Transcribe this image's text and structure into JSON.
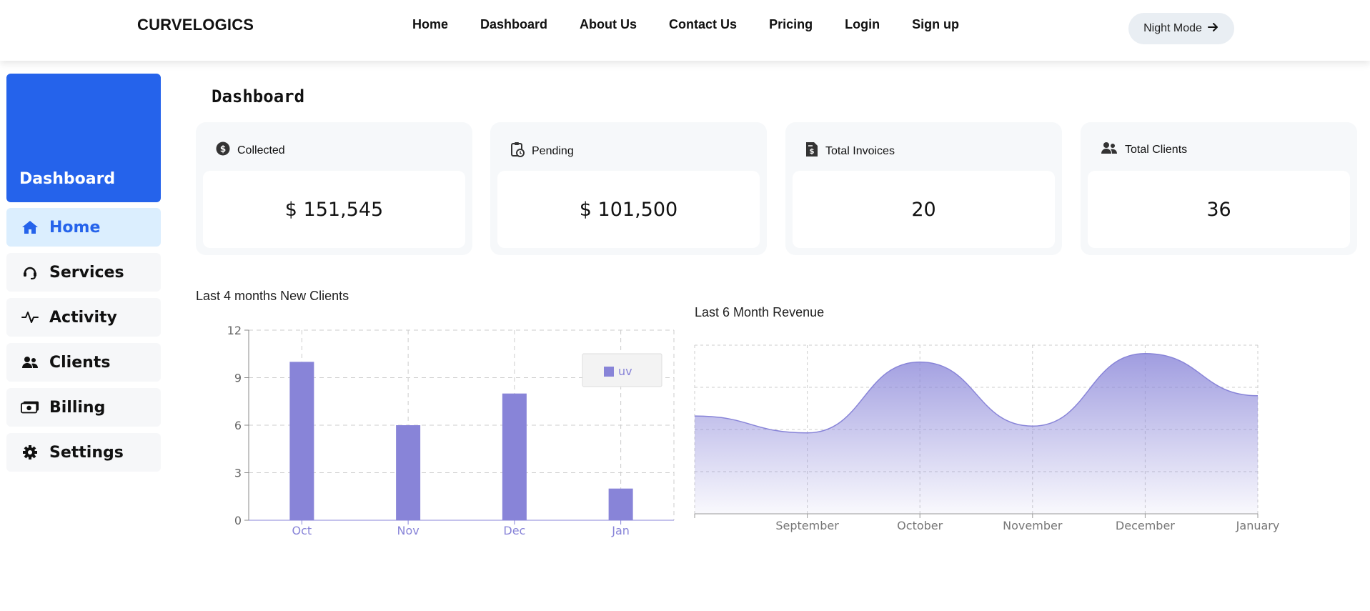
{
  "brand": "CURVELOGICS",
  "nav": [
    "Home",
    "Dashboard",
    "About Us",
    "Contact Us",
    "Pricing",
    "Login",
    "Sign up"
  ],
  "night_mode_label": "Night Mode",
  "sidebar": {
    "header": "Dashboard",
    "items": [
      {
        "label": "Home",
        "icon": "home-icon",
        "active": true
      },
      {
        "label": "Services",
        "icon": "headset-icon",
        "active": false
      },
      {
        "label": "Activity",
        "icon": "activity-icon",
        "active": false
      },
      {
        "label": "Clients",
        "icon": "users-icon",
        "active": false
      },
      {
        "label": "Billing",
        "icon": "money-icon",
        "active": false
      },
      {
        "label": "Settings",
        "icon": "gear-icon",
        "active": false
      }
    ]
  },
  "page_title": "Dashboard",
  "cards": [
    {
      "label": "Collected",
      "value": "$ 151,545",
      "icon": "dollar-circle-icon"
    },
    {
      "label": "Pending",
      "value": "$ 101,500",
      "icon": "clipboard-clock-icon"
    },
    {
      "label": "Total Invoices",
      "value": "20",
      "icon": "invoice-icon"
    },
    {
      "label": "Total Clients",
      "value": "36",
      "icon": "users-icon"
    }
  ],
  "colors": {
    "accent": "#2563eb",
    "bar": "#8884d8",
    "active_bg": "#dbeefe"
  },
  "chart_data": [
    {
      "type": "bar",
      "title": "Last 4 months New Clients",
      "categories": [
        "Oct",
        "Nov",
        "Dec",
        "Jan"
      ],
      "series": [
        {
          "name": "uv",
          "values": [
            10,
            6,
            8,
            2
          ]
        }
      ],
      "ylim": [
        0,
        12
      ],
      "yticks": [
        0,
        3,
        6,
        9,
        12
      ],
      "grid": true,
      "legend": "top-right"
    },
    {
      "type": "area",
      "title": "Last 6 Month Revenue",
      "categories": [
        "",
        "September",
        "October",
        "November",
        "December",
        "January"
      ],
      "series": [
        {
          "values": [
            58,
            48,
            90,
            52,
            95,
            70
          ]
        }
      ],
      "ylim": [
        0,
        100
      ],
      "grid": true
    }
  ]
}
